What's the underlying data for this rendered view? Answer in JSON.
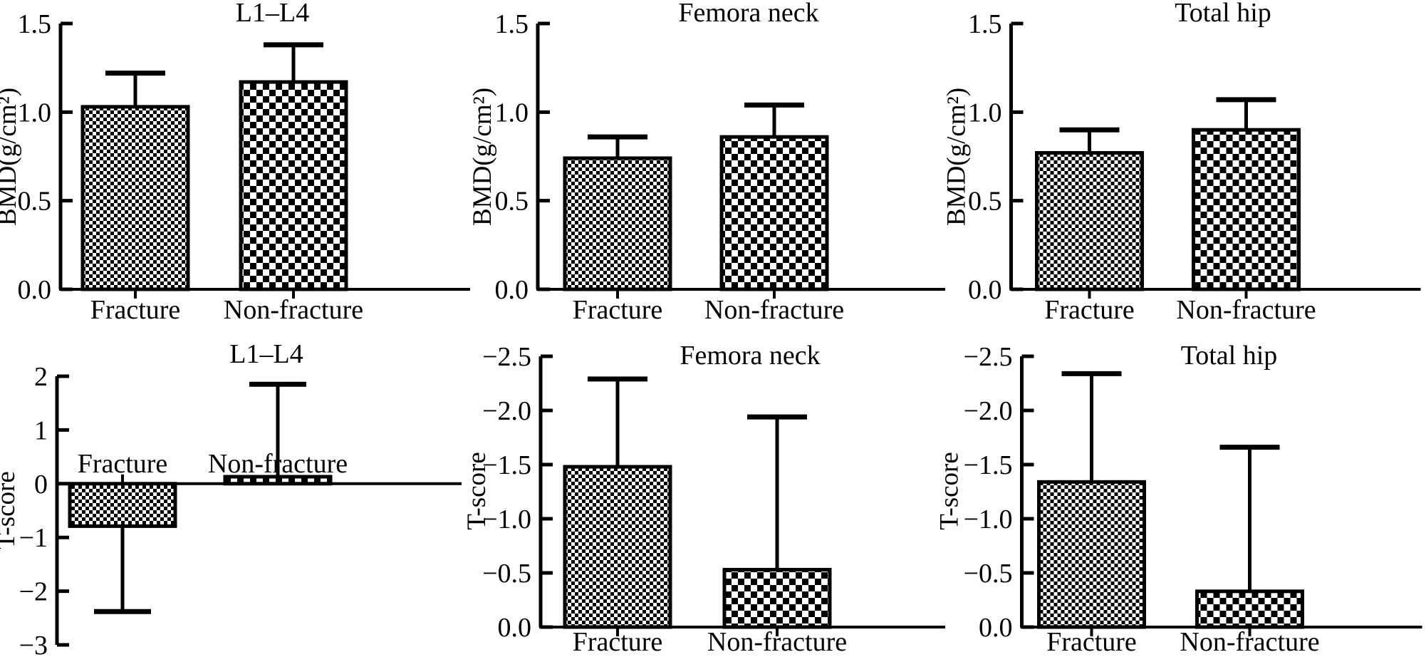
{
  "figure": {
    "description": "Six-panel bar chart figure comparing Fracture vs Non-fracture groups",
    "ink_color": "#000000",
    "background_color": "#ffffff",
    "rows": 2,
    "columns": 3
  },
  "chart_data": [
    {
      "id": "bmd-l1-l4",
      "type": "bar",
      "title": "L1–L4",
      "ylabel": "BMD(g/cm²)",
      "categories": [
        "Fracture",
        "Non-fracture"
      ],
      "values": [
        1.03,
        1.17
      ],
      "error_tops": [
        1.22,
        1.38
      ],
      "ylim_bottom": 0,
      "ylim_top": 1.5,
      "yticks": [
        0,
        0.5,
        1.0,
        1.5
      ],
      "ytick_labels": [
        "0.0",
        "0.5",
        "1.0",
        "1.5"
      ],
      "bar_patterns": [
        "fine-checker",
        "coarse-checker"
      ],
      "category_label_position": "below-axis",
      "grid": "off",
      "legend": "none"
    },
    {
      "id": "bmd-femora-neck",
      "type": "bar",
      "title": "Femora neck",
      "ylabel": "BMD(g/cm²)",
      "categories": [
        "Fracture",
        "Non-fracture"
      ],
      "values": [
        0.74,
        0.86
      ],
      "error_tops": [
        0.86,
        1.04
      ],
      "ylim_bottom": 0,
      "ylim_top": 1.5,
      "yticks": [
        0,
        0.5,
        1.0,
        1.5
      ],
      "ytick_labels": [
        "0.0",
        "0.5",
        "1.0",
        "1.5"
      ],
      "bar_patterns": [
        "fine-checker",
        "coarse-checker"
      ],
      "category_label_position": "below-axis",
      "grid": "off",
      "legend": "none"
    },
    {
      "id": "bmd-total-hip",
      "type": "bar",
      "title": "Total hip",
      "ylabel": "BMD(g/cm²)",
      "categories": [
        "Fracture",
        "Non-fracture"
      ],
      "values": [
        0.77,
        0.9
      ],
      "error_tops": [
        0.9,
        1.07
      ],
      "ylim_bottom": 0,
      "ylim_top": 1.5,
      "yticks": [
        0,
        0.5,
        1.0,
        1.5
      ],
      "ytick_labels": [
        "0.0",
        "0.5",
        "1.0",
        "1.5"
      ],
      "bar_patterns": [
        "fine-checker",
        "coarse-checker"
      ],
      "category_label_position": "below-axis",
      "grid": "off",
      "legend": "none"
    },
    {
      "id": "tscore-l1-l4",
      "type": "bar",
      "title": "L1–L4",
      "ylabel": "T-score",
      "categories": [
        "Fracture",
        "Non-fracture"
      ],
      "values": [
        -0.79,
        0.13
      ],
      "error_tops": [
        -2.38,
        1.85
      ],
      "ylim_bottom": -3,
      "ylim_top": 2,
      "yticks": [
        2,
        1,
        0,
        -1,
        -2,
        -3
      ],
      "ytick_labels": [
        "2",
        "1",
        "0",
        "−1",
        "−2",
        "−3"
      ],
      "bar_patterns": [
        "fine-checker",
        "coarse-checker"
      ],
      "category_label_position": "above-zero-line",
      "grid": "off",
      "legend": "none"
    },
    {
      "id": "tscore-femora-neck",
      "type": "bar",
      "title": "Femora neck",
      "ylabel": "T-score",
      "categories": [
        "Fracture",
        "Non-fracture"
      ],
      "values": [
        -1.48,
        -0.53
      ],
      "error_tops": [
        -2.29,
        -1.94
      ],
      "ylim_bottom": 0,
      "ylim_top": -2.5,
      "yticks": [
        -2.5,
        -2.0,
        -1.5,
        -1.0,
        -0.5,
        0
      ],
      "ytick_labels": [
        "−2.5",
        "−2.0",
        "−1.5",
        "−1.0",
        "−0.5",
        "0.0"
      ],
      "bar_patterns": [
        "fine-checker",
        "coarse-checker"
      ],
      "category_label_position": "below-axis",
      "grid": "off",
      "legend": "none"
    },
    {
      "id": "tscore-total-hip",
      "type": "bar",
      "title": "Total hip",
      "ylabel": "T-score",
      "categories": [
        "Fracture",
        "Non-fracture"
      ],
      "values": [
        -1.34,
        -0.33
      ],
      "error_tops": [
        -2.34,
        -1.66
      ],
      "ylim_bottom": 0,
      "ylim_top": -2.5,
      "yticks": [
        -2.5,
        -2.0,
        -1.5,
        -1.0,
        -0.5,
        0
      ],
      "ytick_labels": [
        "−2.5",
        "−2.0",
        "−1.5",
        "−1.0",
        "−0.5",
        "0.0"
      ],
      "bar_patterns": [
        "fine-checker",
        "coarse-checker"
      ],
      "category_label_position": "below-axis",
      "grid": "off",
      "legend": "none"
    }
  ]
}
